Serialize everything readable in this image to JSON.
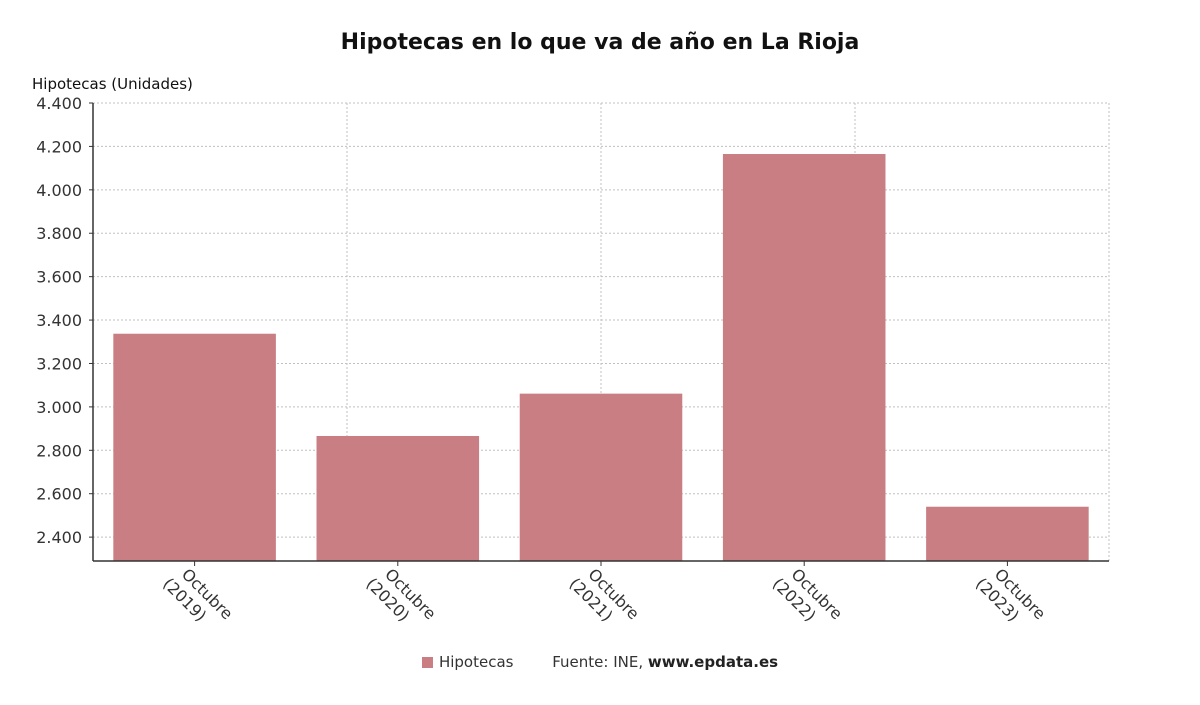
{
  "chart_data": {
    "type": "bar",
    "title": "Hipotecas en lo que va de año en La Rioja",
    "ylabel": "Hipotecas (Unidades)",
    "xlabel": "",
    "categories": [
      "Octubre (2019)",
      "Octubre (2020)",
      "Octubre (2021)",
      "Octubre (2022)",
      "Octubre (2023)"
    ],
    "category_lines": [
      [
        "Octubre",
        "(2019)"
      ],
      [
        "Octubre",
        "(2020)"
      ],
      [
        "Octubre",
        "(2021)"
      ],
      [
        "Octubre",
        "(2022)"
      ],
      [
        "Octubre",
        "(2023)"
      ]
    ],
    "series": [
      {
        "name": "Hipotecas",
        "values": [
          3337,
          2866,
          3061,
          4165,
          2540
        ]
      }
    ],
    "ylim": [
      2290,
      4400
    ],
    "yticks": [
      2400,
      2600,
      2800,
      3000,
      3200,
      3400,
      3600,
      3800,
      4000,
      4200,
      4400
    ],
    "ytick_labels": [
      "2.400",
      "2.600",
      "2.800",
      "3.000",
      "3.200",
      "3.400",
      "3.600",
      "3.800",
      "4.000",
      "4.200",
      "4.400"
    ],
    "grid": true,
    "legend_position": "bottom",
    "colors": {
      "bar": "#c97e84",
      "grid": "#c0c0c0",
      "axis": "#333333"
    }
  },
  "legend": {
    "label": "Hipotecas",
    "source_prefix": "Fuente: INE, ",
    "source_site": "www.epdata.es"
  }
}
